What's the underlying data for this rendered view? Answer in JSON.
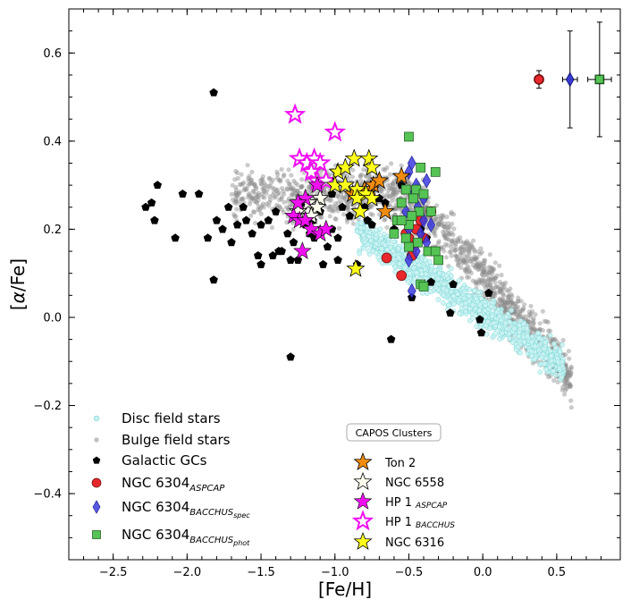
{
  "chart_data": {
    "type": "scatter",
    "xlabel": "[Fe/H]",
    "ylabel": "[α/Fe]",
    "xlim": [
      -2.8,
      0.93
    ],
    "ylim": [
      -0.55,
      0.7
    ],
    "x_ticks": [
      {
        "v": -2.5,
        "label": "−2.5"
      },
      {
        "v": -2.0,
        "label": "−2.0"
      },
      {
        "v": -1.5,
        "label": "−1.5"
      },
      {
        "v": -1.0,
        "label": "−1.0"
      },
      {
        "v": -0.5,
        "label": "−0.5"
      },
      {
        "v": 0.0,
        "label": "0.0"
      },
      {
        "v": 0.5,
        "label": "0.5"
      }
    ],
    "y_ticks": [
      {
        "v": -0.4,
        "label": "−0.4"
      },
      {
        "v": -0.2,
        "label": "−0.2"
      },
      {
        "v": 0.0,
        "label": "0.0"
      },
      {
        "v": 0.2,
        "label": "0.2"
      },
      {
        "v": 0.4,
        "label": "0.4"
      },
      {
        "v": 0.6,
        "label": "0.6"
      }
    ],
    "grid": false,
    "legend": {
      "placement": "lower-left",
      "entries": [
        {
          "key": "disc",
          "label": "Disc field stars"
        },
        {
          "key": "bulge",
          "label": "Bulge field stars"
        },
        {
          "key": "gc",
          "label": "Galactic GCs"
        },
        {
          "key": "aspcap",
          "label": "NGC 6304",
          "sub": "ASPCAP"
        },
        {
          "key": "spec",
          "label": "NGC 6304",
          "sub": "BACCHUS",
          "subsub": "spec"
        },
        {
          "key": "phot",
          "label": "NGC 6304",
          "sub": "BACCHUS",
          "subsub": "phot"
        }
      ]
    },
    "capos_legend": {
      "title": "CAPOS Clusters",
      "placement": "lower-center",
      "entries": [
        {
          "key": "ton2",
          "label": "Ton 2"
        },
        {
          "key": "n6558",
          "label": "NGC 6558"
        },
        {
          "key": "hp1a",
          "label": "HP 1",
          "sub": "ASPCAP"
        },
        {
          "key": "hp1b",
          "label": "HP 1",
          "sub": "BACCHUS"
        },
        {
          "key": "n6316",
          "label": "NGC 6316"
        }
      ]
    },
    "colors": {
      "disc_face": "#cdf3f3",
      "disc_edge": "#7fd8d8",
      "bulge": "#8c8c8c",
      "gc": "#000000",
      "aspcap": "#e8282c",
      "spec": "#3b3be0",
      "phot": "#55c455",
      "ton2": "#f28c0f",
      "n6558": "#fffff0",
      "hp1a": "#f010f0",
      "hp1b": "#ffffff",
      "hp1b_edge": "#f010f0",
      "n6316": "#ffff1a"
    },
    "series": [
      {
        "key": "gc",
        "points": [
          [
            -1.82,
            0.51
          ],
          [
            -2.28,
            0.25
          ],
          [
            -2.24,
            0.26
          ],
          [
            -2.2,
            0.3
          ],
          [
            -2.22,
            0.22
          ],
          [
            -2.03,
            0.28
          ],
          [
            -1.92,
            0.28
          ],
          [
            -2.08,
            0.18
          ],
          [
            -1.86,
            0.18
          ],
          [
            -1.8,
            0.22
          ],
          [
            -1.76,
            0.2
          ],
          [
            -1.72,
            0.25
          ],
          [
            -1.7,
            0.17
          ],
          [
            -1.66,
            0.21
          ],
          [
            -1.62,
            0.25
          ],
          [
            -1.6,
            0.22
          ],
          [
            -1.56,
            0.19
          ],
          [
            -1.52,
            0.14
          ],
          [
            -1.5,
            0.21
          ],
          [
            -1.45,
            0.22
          ],
          [
            -1.4,
            0.24
          ],
          [
            -1.36,
            0.15
          ],
          [
            -1.32,
            0.19
          ],
          [
            -1.28,
            0.17
          ],
          [
            -1.25,
            0.13
          ],
          [
            -1.22,
            0.26
          ],
          [
            -1.2,
            0.21
          ],
          [
            -1.17,
            0.19
          ],
          [
            -1.14,
            0.18
          ],
          [
            -1.1,
            0.24
          ],
          [
            -1.08,
            0.12
          ],
          [
            -1.05,
            0.16
          ],
          [
            -1.02,
            0.2
          ],
          [
            -0.98,
            0.18
          ],
          [
            -0.95,
            0.25
          ],
          [
            -0.9,
            0.23
          ],
          [
            -0.85,
            0.12
          ],
          [
            -0.8,
            0.25
          ],
          [
            -0.75,
            0.21
          ],
          [
            -0.7,
            0.27
          ],
          [
            -0.66,
            0.26
          ],
          [
            -0.6,
            0.2
          ],
          [
            -0.55,
            0.3
          ],
          [
            -0.48,
            0.045
          ],
          [
            -0.42,
            0.2
          ],
          [
            -0.38,
            0.18
          ],
          [
            -0.35,
            0.08
          ],
          [
            -0.2,
            0.075
          ],
          [
            -0.22,
            0.01
          ],
          [
            0.04,
            0.055
          ],
          [
            -0.02,
            -0.005
          ],
          [
            -0.01,
            -0.035
          ],
          [
            -0.62,
            -0.05
          ],
          [
            -1.3,
            -0.09
          ],
          [
            -1.82,
            0.085
          ],
          [
            -1.5,
            0.12
          ],
          [
            -1.42,
            0.14
          ],
          [
            -1.38,
            0.15
          ],
          [
            -1.3,
            0.13
          ],
          [
            -1.15,
            0.22
          ],
          [
            -0.98,
            0.13
          ],
          [
            -1.02,
            0.28
          ],
          [
            -0.78,
            0.22
          ]
        ]
      },
      {
        "key": "aspcap",
        "points": [
          [
            0.38,
            0.54
          ],
          [
            -0.65,
            0.135
          ],
          [
            -0.55,
            0.095
          ],
          [
            -0.48,
            0.14
          ],
          [
            -0.45,
            0.2
          ],
          [
            -0.5,
            0.18
          ],
          [
            -0.42,
            0.22
          ],
          [
            -0.35,
            0.24
          ],
          [
            -0.52,
            0.19
          ],
          [
            -0.47,
            0.16
          ],
          [
            -0.4,
            0.18
          ]
        ]
      },
      {
        "key": "spec",
        "points": [
          [
            0.59,
            0.54
          ],
          [
            -0.48,
            0.35
          ],
          [
            -0.5,
            0.33
          ],
          [
            -0.45,
            0.3
          ],
          [
            -0.47,
            0.28
          ],
          [
            -0.4,
            0.27
          ],
          [
            -0.38,
            0.31
          ],
          [
            -0.44,
            0.25
          ],
          [
            -0.4,
            0.22
          ],
          [
            -0.5,
            0.2
          ],
          [
            -0.42,
            0.19
          ],
          [
            -0.38,
            0.17
          ],
          [
            -0.45,
            0.15
          ],
          [
            -0.48,
            0.06
          ],
          [
            -0.5,
            0.13
          ],
          [
            -0.35,
            0.21
          ],
          [
            -0.52,
            0.24
          ]
        ]
      },
      {
        "key": "phot",
        "points": [
          [
            0.79,
            0.54
          ],
          [
            -0.5,
            0.41
          ],
          [
            -0.42,
            0.34
          ],
          [
            -0.32,
            0.33
          ],
          [
            -0.52,
            0.29
          ],
          [
            -0.45,
            0.29
          ],
          [
            -0.4,
            0.28
          ],
          [
            -0.47,
            0.27
          ],
          [
            -0.55,
            0.26
          ],
          [
            -0.43,
            0.24
          ],
          [
            -0.35,
            0.24
          ],
          [
            -0.48,
            0.23
          ],
          [
            -0.5,
            0.21
          ],
          [
            -0.58,
            0.22
          ],
          [
            -0.6,
            0.19
          ],
          [
            -0.52,
            0.18
          ],
          [
            -0.44,
            0.17
          ],
          [
            -0.37,
            0.15
          ],
          [
            -0.32,
            0.15
          ],
          [
            -0.3,
            0.13
          ],
          [
            -0.5,
            0.16
          ],
          [
            -0.42,
            0.075
          ],
          [
            -0.4,
            0.07
          ],
          [
            -0.55,
            0.22
          ]
        ]
      },
      {
        "key": "ton2",
        "points": [
          [
            -0.88,
            0.28
          ],
          [
            -0.8,
            0.29
          ],
          [
            -0.76,
            0.29
          ],
          [
            -0.74,
            0.3
          ],
          [
            -0.7,
            0.31
          ],
          [
            -0.66,
            0.24
          ],
          [
            -0.55,
            0.32
          ]
        ]
      },
      {
        "key": "n6558",
        "points": [
          [
            -1.1,
            0.27
          ],
          [
            -1.18,
            0.26
          ],
          [
            -1.12,
            0.25
          ],
          [
            -1.25,
            0.24
          ],
          [
            -1.16,
            0.23
          ]
        ]
      },
      {
        "key": "hp1a",
        "points": [
          [
            -1.28,
            0.23
          ],
          [
            -1.24,
            0.22
          ],
          [
            -1.2,
            0.22
          ],
          [
            -1.16,
            0.2
          ],
          [
            -1.1,
            0.19
          ],
          [
            -1.06,
            0.2
          ],
          [
            -1.22,
            0.15
          ],
          [
            -1.2,
            0.27
          ],
          [
            -1.12,
            0.3
          ],
          [
            -1.25,
            0.26
          ]
        ]
      },
      {
        "key": "hp1b",
        "points": [
          [
            -1.27,
            0.46
          ],
          [
            -1.0,
            0.42
          ],
          [
            -1.24,
            0.36
          ],
          [
            -1.19,
            0.35
          ],
          [
            -1.14,
            0.36
          ],
          [
            -1.1,
            0.35
          ],
          [
            -1.16,
            0.33
          ],
          [
            -1.12,
            0.31
          ],
          [
            -1.06,
            0.31
          ]
        ]
      },
      {
        "key": "n6316",
        "points": [
          [
            -0.98,
            0.33
          ],
          [
            -0.93,
            0.34
          ],
          [
            -0.87,
            0.36
          ],
          [
            -0.77,
            0.36
          ],
          [
            -0.75,
            0.34
          ],
          [
            -1.0,
            0.3
          ],
          [
            -0.93,
            0.3
          ],
          [
            -0.85,
            0.29
          ],
          [
            -0.79,
            0.28
          ],
          [
            -0.85,
            0.27
          ],
          [
            -0.75,
            0.27
          ],
          [
            -0.83,
            0.24
          ],
          [
            -0.86,
            0.11
          ]
        ]
      }
    ],
    "error_bars": [
      {
        "key": "aspcap",
        "x": 0.38,
        "y": 0.54,
        "xerr": 0.025,
        "yerr": 0.02
      },
      {
        "key": "spec",
        "x": 0.59,
        "y": 0.54,
        "xerr": 0.05,
        "yerr": 0.11
      },
      {
        "key": "phot",
        "x": 0.79,
        "y": 0.54,
        "xerr": 0.08,
        "yerr": 0.13
      }
    ]
  }
}
